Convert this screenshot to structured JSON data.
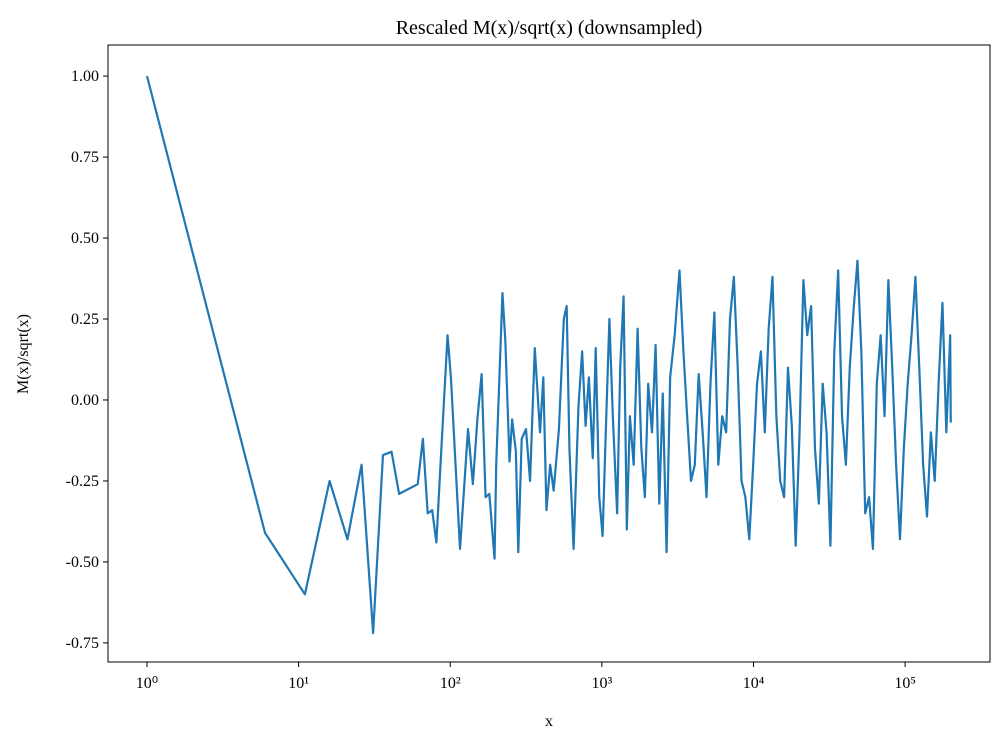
{
  "chart_data": {
    "type": "line",
    "title": "Rescaled M(x)/sqrt(x) (downsampled)",
    "xlabel": "x",
    "ylabel": "M(x)/sqrt(x)",
    "xscale": "log",
    "color": "#1f77b4",
    "grid": false,
    "xlim": [
      0.553,
      363000
    ],
    "ylim": [
      -0.809,
      1.096
    ],
    "xticks": [
      {
        "value": 1,
        "label": "10⁰"
      },
      {
        "value": 10,
        "label": "10¹"
      },
      {
        "value": 100,
        "label": "10²"
      },
      {
        "value": 1000,
        "label": "10³"
      },
      {
        "value": 10000,
        "label": "10⁴"
      },
      {
        "value": 100000,
        "label": "10⁵"
      }
    ],
    "yticks": [
      {
        "value": 1,
        "label": "1.00"
      },
      {
        "value": 0.75,
        "label": "0.75"
      },
      {
        "value": 0.5,
        "label": "0.50"
      },
      {
        "value": 0.25,
        "label": "0.25"
      },
      {
        "value": 0,
        "label": "0.00"
      },
      {
        "value": -0.25,
        "label": "-0.25"
      },
      {
        "value": -0.5,
        "label": "-0.50"
      },
      {
        "value": -0.75,
        "label": "-0.75"
      }
    ],
    "x": [
      1,
      6,
      11,
      16,
      21,
      26,
      31,
      36,
      41,
      46,
      61,
      66,
      71,
      76,
      81,
      86,
      96,
      101,
      116,
      131,
      141,
      151,
      161,
      171,
      181,
      196,
      201,
      221,
      231,
      246,
      256,
      271,
      281,
      296,
      316,
      336,
      361,
      391,
      411,
      431,
      456,
      481,
      521,
      561,
      586,
      611,
      651,
      701,
      741,
      781,
      821,
      871,
      911,
      961,
      1011,
      1061,
      1121,
      1181,
      1261,
      1321,
      1391,
      1461,
      1531,
      1621,
      1721,
      1821,
      1921,
      2021,
      2141,
      2261,
      2391,
      2521,
      2671,
      2821,
      3021,
      3251,
      3451,
      3651,
      3871,
      4101,
      4351,
      4621,
      4901,
      5201,
      5521,
      5861,
      6221,
      6601,
      7001,
      7421,
      7871,
      8341,
      8841,
      9381,
      9951,
      10551,
      11191,
      11871,
      12591,
      13341,
      14151,
      15011,
      15921,
      16881,
      17901,
      18981,
      20131,
      21341,
      22621,
      23991,
      25441,
      26981,
      28611,
      30341,
      32171,
      34121,
      36181,
      38371,
      40681,
      43141,
      45751,
      48511,
      51441,
      54551,
      57851,
      61341,
      65051,
      68981,
      73141,
      77561,
      82251,
      87221,
      92491,
      98081,
      104001,
      110291,
      116951,
      124021,
      131511,
      139461,
      147881,
      156811,
      166291,
      176341,
      187001,
      198301,
      200001
    ],
    "values": [
      1.0,
      -0.41,
      -0.6,
      -0.25,
      -0.43,
      -0.2,
      -0.72,
      -0.17,
      -0.16,
      -0.29,
      -0.26,
      -0.12,
      -0.35,
      -0.34,
      -0.44,
      -0.21,
      0.2,
      0.07,
      -0.46,
      -0.09,
      -0.26,
      -0.06,
      0.08,
      -0.3,
      -0.29,
      -0.49,
      -0.2,
      0.33,
      0.18,
      -0.19,
      -0.06,
      -0.16,
      -0.47,
      -0.12,
      -0.09,
      -0.25,
      0.16,
      -0.1,
      0.07,
      -0.34,
      -0.2,
      -0.28,
      -0.09,
      0.25,
      0.29,
      -0.15,
      -0.46,
      -0.02,
      0.15,
      -0.08,
      0.07,
      -0.18,
      0.16,
      -0.3,
      -0.42,
      -0.1,
      0.25,
      -0.05,
      -0.35,
      0.1,
      0.32,
      -0.4,
      -0.05,
      -0.2,
      0.22,
      -0.15,
      -0.3,
      0.05,
      -0.1,
      0.17,
      -0.32,
      0.02,
      -0.47,
      0.07,
      0.2,
      0.4,
      0.15,
      -0.05,
      -0.25,
      -0.2,
      0.08,
      -0.1,
      -0.3,
      0.05,
      0.27,
      -0.2,
      -0.05,
      -0.1,
      0.25,
      0.38,
      0.1,
      -0.25,
      -0.3,
      -0.43,
      -0.2,
      0.05,
      0.15,
      -0.1,
      0.22,
      0.38,
      -0.05,
      -0.25,
      -0.3,
      0.1,
      -0.08,
      -0.45,
      -0.1,
      0.37,
      0.2,
      0.29,
      -0.15,
      -0.32,
      0.05,
      -0.1,
      -0.45,
      0.15,
      0.4,
      -0.05,
      -0.2,
      0.1,
      0.28,
      0.43,
      0.15,
      -0.35,
      -0.3,
      -0.46,
      0.05,
      0.2,
      -0.05,
      0.37,
      0.1,
      -0.2,
      -0.43,
      -0.15,
      0.05,
      0.2,
      0.38,
      0.1,
      -0.2,
      -0.36,
      -0.1,
      -0.25,
      0.05,
      0.3,
      -0.1,
      0.2,
      -0.07
    ]
  }
}
